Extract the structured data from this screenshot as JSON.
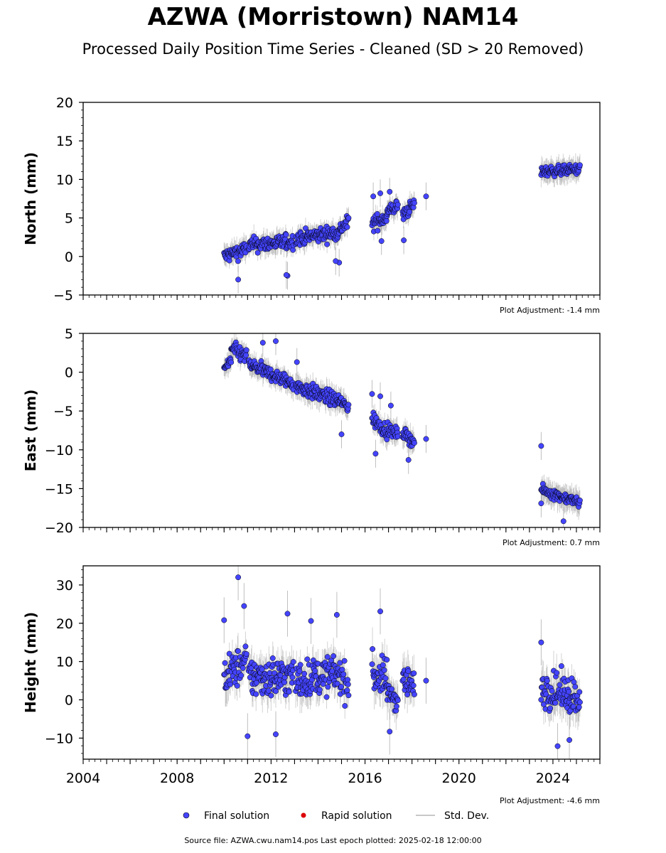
{
  "title": "AZWA (Morristown) NAM14",
  "subtitle": "Processed Daily Position Time Series - Cleaned (SD > 20 Removed)",
  "source_note": "Source file: AZWA.cwu.nam14.pos  Last epoch plotted: 2025-02-18 12:00:00",
  "legend": [
    {
      "label": "Final solution",
      "color": "#4444ff"
    },
    {
      "label": "Rapid solution",
      "color": "#dd0000"
    },
    {
      "label": "Std. Dev.",
      "color": "#c8c8c8"
    }
  ],
  "colors": {
    "final": "#4444ff",
    "rapid": "#dd0000",
    "stddev": "#808080"
  },
  "chart_data": [
    {
      "type": "scatter",
      "ylabel": "North (mm)",
      "adjustment": "Plot Adjustment: -1.4 mm",
      "xlim": [
        2004.0,
        2026.0
      ],
      "ylim": [
        -5,
        20
      ],
      "yticks": [
        -5,
        0,
        5,
        10,
        15,
        20
      ],
      "segments": [
        {
          "x": [
            2010.0,
            2010.95
          ],
          "y": [
            0.0,
            1.0
          ],
          "spread": 0.9,
          "err": 1.2
        },
        {
          "x": [
            2011.05,
            2012.95
          ],
          "y": [
            1.5,
            1.9
          ],
          "spread": 0.9,
          "err": 1.2
        },
        {
          "x": [
            2013.05,
            2014.95
          ],
          "y": [
            2.3,
            3.2
          ],
          "spread": 0.9,
          "err": 1.2
        },
        {
          "x": [
            2014.95,
            2015.3
          ],
          "y": [
            3.6,
            4.5
          ],
          "spread": 0.9,
          "err": 1.2
        },
        {
          "x": [
            2016.3,
            2016.95
          ],
          "y": [
            4.2,
            5.2
          ],
          "spread": 0.9,
          "err": 1.2
        },
        {
          "x": [
            2016.95,
            2017.4
          ],
          "y": [
            5.8,
            6.6
          ],
          "spread": 0.8,
          "err": 1.2
        },
        {
          "x": [
            2017.6,
            2018.1
          ],
          "y": [
            5.3,
            6.8
          ],
          "spread": 0.8,
          "err": 1.2
        },
        {
          "x": [
            2023.5,
            2025.15
          ],
          "y": [
            11.0,
            11.3
          ],
          "spread": 0.6,
          "err": 1.3
        }
      ],
      "outliers": [
        {
          "x": 2010.6,
          "y": -3.0
        },
        {
          "x": 2012.7,
          "y": -2.5
        },
        {
          "x": 2012.65,
          "y": -2.4
        },
        {
          "x": 2014.9,
          "y": -0.8
        },
        {
          "x": 2014.75,
          "y": -0.6
        },
        {
          "x": 2016.35,
          "y": 7.8
        },
        {
          "x": 2016.65,
          "y": 8.2
        },
        {
          "x": 2016.7,
          "y": 2.0
        },
        {
          "x": 2017.05,
          "y": 8.4
        },
        {
          "x": 2017.65,
          "y": 2.1
        },
        {
          "x": 2018.6,
          "y": 7.8
        }
      ]
    },
    {
      "type": "scatter",
      "ylabel": "East (mm)",
      "adjustment": "Plot Adjustment: 0.7 mm",
      "xlim": [
        2004.0,
        2026.0
      ],
      "ylim": [
        -20,
        5
      ],
      "yticks": [
        -20,
        -15,
        -10,
        -5,
        0,
        5
      ],
      "segments": [
        {
          "x": [
            2010.0,
            2010.3
          ],
          "y": [
            0.5,
            1.5
          ],
          "spread": 0.8,
          "err": 1.2
        },
        {
          "x": [
            2010.3,
            2010.95
          ],
          "y": [
            3.0,
            2.0
          ],
          "spread": 0.9,
          "err": 1.2
        },
        {
          "x": [
            2011.05,
            2012.95
          ],
          "y": [
            1.0,
            -1.5
          ],
          "spread": 0.8,
          "err": 1.2
        },
        {
          "x": [
            2013.05,
            2014.95
          ],
          "y": [
            -1.8,
            -3.8
          ],
          "spread": 0.9,
          "err": 1.3
        },
        {
          "x": [
            2014.95,
            2015.3
          ],
          "y": [
            -3.8,
            -4.5
          ],
          "spread": 0.8,
          "err": 1.3
        },
        {
          "x": [
            2016.3,
            2016.95
          ],
          "y": [
            -6.0,
            -7.6
          ],
          "spread": 0.9,
          "err": 1.3
        },
        {
          "x": [
            2016.95,
            2017.4
          ],
          "y": [
            -7.5,
            -7.9
          ],
          "spread": 0.7,
          "err": 1.3
        },
        {
          "x": [
            2017.6,
            2018.1
          ],
          "y": [
            -7.8,
            -9.0
          ],
          "spread": 0.7,
          "err": 1.3
        },
        {
          "x": [
            2023.5,
            2025.15
          ],
          "y": [
            -15.2,
            -16.8
          ],
          "spread": 0.6,
          "err": 1.4
        }
      ],
      "outliers": [
        {
          "x": 2011.65,
          "y": 3.8
        },
        {
          "x": 2012.2,
          "y": 4.0
        },
        {
          "x": 2013.1,
          "y": 1.3
        },
        {
          "x": 2015.0,
          "y": -8.0
        },
        {
          "x": 2016.3,
          "y": -2.8
        },
        {
          "x": 2016.65,
          "y": -3.1
        },
        {
          "x": 2016.45,
          "y": -10.5
        },
        {
          "x": 2017.1,
          "y": -4.3
        },
        {
          "x": 2017.85,
          "y": -11.3
        },
        {
          "x": 2018.6,
          "y": -8.6
        },
        {
          "x": 2023.5,
          "y": -9.5
        },
        {
          "x": 2023.5,
          "y": -16.9
        },
        {
          "x": 2024.45,
          "y": -19.2
        }
      ]
    },
    {
      "type": "scatter",
      "ylabel": "Height (mm)",
      "adjustment": "Plot Adjustment: -4.6 mm",
      "xlim": [
        2004.0,
        2026.0
      ],
      "xticks": [
        2004,
        2008,
        2012,
        2016,
        2020,
        2024
      ],
      "ylim": [
        -15.5,
        35
      ],
      "yticks": [
        -10,
        0,
        10,
        20,
        30
      ],
      "segments": [
        {
          "x": [
            2010.0,
            2010.95
          ],
          "y": [
            6.0,
            10.0
          ],
          "spread": 4.5,
          "err": 4.0
        },
        {
          "x": [
            2011.05,
            2012.95
          ],
          "y": [
            6.0,
            6.0
          ],
          "spread": 5.0,
          "err": 4.0
        },
        {
          "x": [
            2013.05,
            2014.95
          ],
          "y": [
            5.0,
            7.0
          ],
          "spread": 4.5,
          "err": 4.0
        },
        {
          "x": [
            2014.95,
            2015.3
          ],
          "y": [
            6.0,
            4.0
          ],
          "spread": 4.5,
          "err": 4.0
        },
        {
          "x": [
            2016.3,
            2016.95
          ],
          "y": [
            7.0,
            5.0
          ],
          "spread": 5.0,
          "err": 4.5
        },
        {
          "x": [
            2016.95,
            2017.4
          ],
          "y": [
            2.0,
            0.0
          ],
          "spread": 3.0,
          "err": 4.0
        },
        {
          "x": [
            2017.6,
            2018.1
          ],
          "y": [
            6.0,
            3.0
          ],
          "spread": 4.0,
          "err": 4.0
        },
        {
          "x": [
            2023.5,
            2025.15
          ],
          "y": [
            3.0,
            1.0
          ],
          "spread": 4.5,
          "err": 4.5
        }
      ],
      "outliers": [
        {
          "x": 2010.6,
          "y": 32.0
        },
        {
          "x": 2010.0,
          "y": 20.8
        },
        {
          "x": 2010.85,
          "y": 24.5
        },
        {
          "x": 2011.0,
          "y": -9.5
        },
        {
          "x": 2012.2,
          "y": -9.0
        },
        {
          "x": 2012.7,
          "y": 22.5
        },
        {
          "x": 2014.8,
          "y": 22.2
        },
        {
          "x": 2016.65,
          "y": 23.1
        },
        {
          "x": 2017.05,
          "y": -8.3
        },
        {
          "x": 2018.6,
          "y": 5.0
        },
        {
          "x": 2023.5,
          "y": 15.0
        },
        {
          "x": 2024.2,
          "y": -12.1
        },
        {
          "x": 2024.7,
          "y": -10.5
        },
        {
          "x": 2013.7,
          "y": 20.6
        }
      ]
    }
  ]
}
